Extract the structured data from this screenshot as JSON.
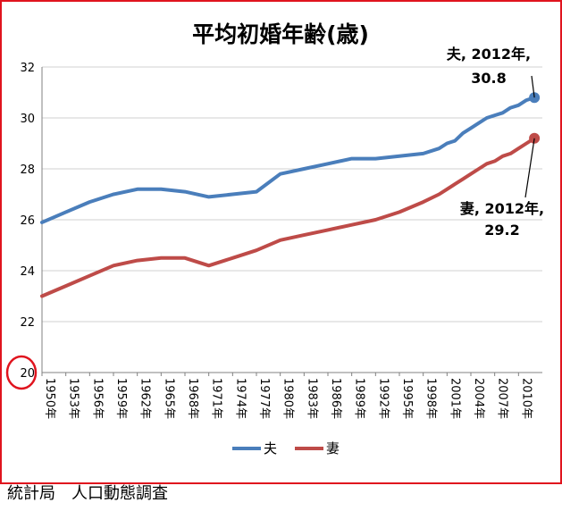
{
  "chart_data": {
    "type": "line",
    "title": "平均初婚年齢(歳)",
    "xlabel": "",
    "ylabel": "",
    "ylim": [
      20,
      32
    ],
    "yticks": [
      "20",
      "22",
      "24",
      "26",
      "28",
      "30",
      "32"
    ],
    "xtick_labels": [
      "1950年",
      "1953年",
      "1956年",
      "1959年",
      "1962年",
      "1965年",
      "1968年",
      "1971年",
      "1974年",
      "1977年",
      "1980年",
      "1983年",
      "1986年",
      "1989年",
      "1992年",
      "1995年",
      "1998年",
      "2001年",
      "2004年",
      "2007年",
      "2010年"
    ],
    "grid": true,
    "legend_position": "bottom",
    "series": [
      {
        "name": "夫",
        "color": "#4a7ebb",
        "x": [
          1950,
          1953,
          1956,
          1959,
          1962,
          1965,
          1968,
          1971,
          1974,
          1977,
          1980,
          1983,
          1986,
          1989,
          1992,
          1995,
          1998,
          2000,
          2001,
          2002,
          2003,
          2004,
          2005,
          2006,
          2007,
          2008,
          2009,
          2010,
          2011,
          2012
        ],
        "values": [
          25.9,
          26.3,
          26.7,
          27.0,
          27.2,
          27.2,
          27.1,
          26.9,
          27.0,
          27.1,
          27.8,
          28.0,
          28.2,
          28.4,
          28.4,
          28.5,
          28.6,
          28.8,
          29.0,
          29.1,
          29.4,
          29.6,
          29.8,
          30.0,
          30.1,
          30.2,
          30.4,
          30.5,
          30.7,
          30.8
        ]
      },
      {
        "name": "妻",
        "color": "#be4b48",
        "x": [
          1950,
          1953,
          1956,
          1959,
          1962,
          1965,
          1968,
          1971,
          1974,
          1977,
          1980,
          1983,
          1986,
          1989,
          1992,
          1995,
          1998,
          2000,
          2001,
          2002,
          2003,
          2004,
          2005,
          2006,
          2007,
          2008,
          2009,
          2010,
          2011,
          2012
        ],
        "values": [
          23.0,
          23.4,
          23.8,
          24.2,
          24.4,
          24.5,
          24.5,
          24.2,
          24.5,
          24.8,
          25.2,
          25.4,
          25.6,
          25.8,
          26.0,
          26.3,
          26.7,
          27.0,
          27.2,
          27.4,
          27.6,
          27.8,
          28.0,
          28.2,
          28.3,
          28.5,
          28.6,
          28.8,
          29.0,
          29.2
        ]
      }
    ],
    "annotations": [
      {
        "series": "夫",
        "line1": "夫, 2012年,",
        "line2": "30.8"
      },
      {
        "series": "妻",
        "line1": "妻, 2012年,",
        "line2": "29.2"
      }
    ],
    "highlight_color": "#e0141e"
  },
  "source_caption": "統計局　人口動態調査"
}
